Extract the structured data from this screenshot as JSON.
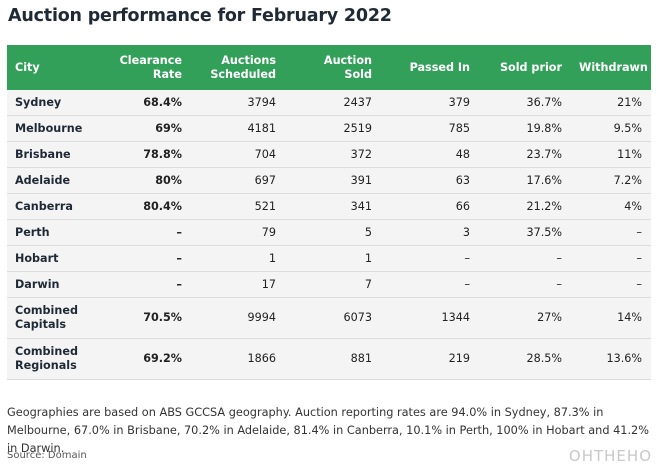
{
  "title": "Auction performance for February 2022",
  "columns": [
    "City",
    "Clearance Rate",
    "Auctions Scheduled",
    "Auction Sold",
    "Passed In",
    "Sold prior",
    "Withdrawn"
  ],
  "rows": [
    [
      "Sydney",
      "68.4%",
      "3794",
      "2437",
      "379",
      "36.7%",
      "21%"
    ],
    [
      "Melbourne",
      "69%",
      "4181",
      "2519",
      "785",
      "19.8%",
      "9.5%"
    ],
    [
      "Brisbane",
      "78.8%",
      "704",
      "372",
      "48",
      "23.7%",
      "11%"
    ],
    [
      "Adelaide",
      "80%",
      "697",
      "391",
      "63",
      "17.6%",
      "7.2%"
    ],
    [
      "Canberra",
      "80.4%",
      "521",
      "341",
      "66",
      "21.2%",
      "4%"
    ],
    [
      "Perth",
      "–",
      "79",
      "5",
      "3",
      "37.5%",
      "–"
    ],
    [
      "Hobart",
      "–",
      "1",
      "1",
      "–",
      "–",
      "–"
    ],
    [
      "Darwin",
      "–",
      "17",
      "7",
      "–",
      "–",
      "–"
    ],
    [
      "Combined Capitals",
      "70.5%",
      "9994",
      "6073",
      "1344",
      "27%",
      "14%"
    ],
    [
      "Combined Regionals",
      "69.2%",
      "1866",
      "881",
      "219",
      "28.5%",
      "13.6%"
    ]
  ],
  "note": "Geographies are based on ABS GCCSA geography. Auction reporting rates are 94.0% in Sydney, 87.3% in Melbourne, 67.0% in Brisbane, 70.2% in Adelaide, 81.4% in Canberra, 10.1% in Perth, 100% in Hobart and 41.2% in Darwin.",
  "source": "Source: Domain",
  "watermark": "OHTHEHO",
  "colors": {
    "header_bg": "#33a05a",
    "header_text": "#ffffff",
    "row_bg": "#f4f4f4",
    "title": "#1f2a36"
  }
}
